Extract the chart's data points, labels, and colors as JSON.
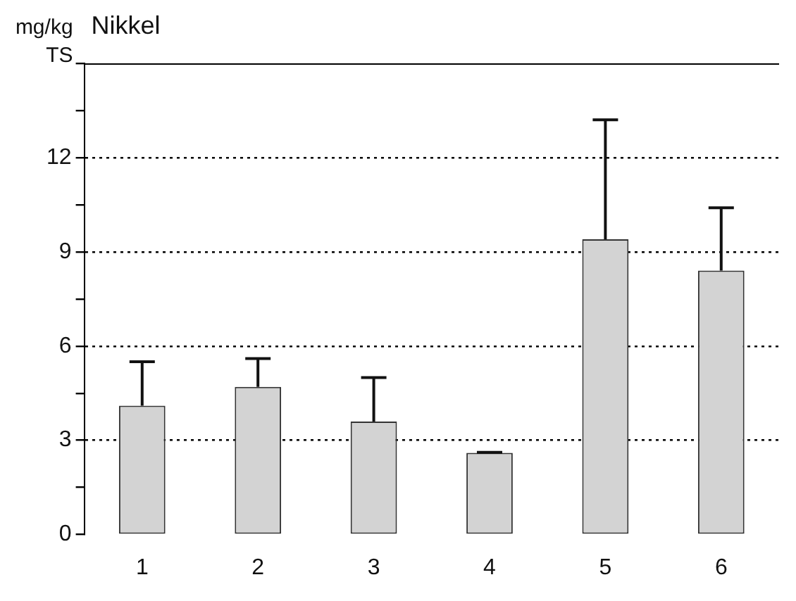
{
  "chart_data": {
    "type": "bar",
    "title": "Nikkel",
    "ylabel": "mg/kg TS",
    "categories": [
      "1",
      "2",
      "3",
      "4",
      "5",
      "6"
    ],
    "values": [
      4.1,
      4.7,
      3.6,
      2.6,
      9.4,
      8.4
    ],
    "errors": [
      [
        4.1,
        5.5
      ],
      [
        4.7,
        5.6
      ],
      [
        3.6,
        5.0
      ],
      [
        2.6,
        2.62
      ],
      [
        9.4,
        13.2
      ],
      [
        8.4,
        10.4
      ]
    ],
    "color": "#d3d3d3",
    "ylim": [
      0,
      15
    ],
    "yticks": [
      0,
      {
        "value": 1.5,
        "label": null
      },
      3,
      {
        "value": 4.5,
        "label": null
      },
      6,
      {
        "value": 7.5,
        "label": null
      },
      9,
      {
        "value": 10.5,
        "label": null
      },
      12,
      {
        "value": 13.5,
        "label": null
      },
      {
        "value": 15,
        "label": null
      }
    ],
    "grid": "y",
    "legend": false
  }
}
